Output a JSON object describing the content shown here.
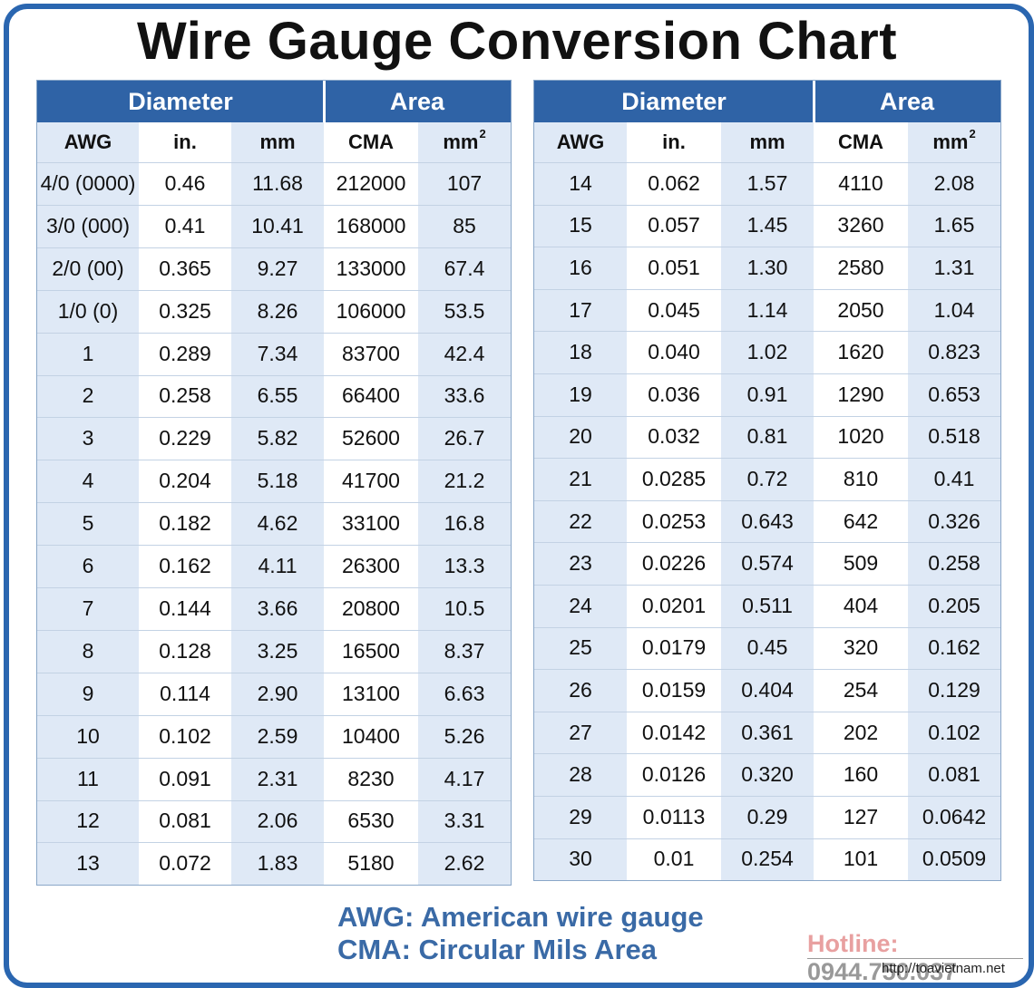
{
  "title": "Wire Gauge Conversion Chart",
  "group_headers": {
    "diameter": "Diameter",
    "area": "Area"
  },
  "columns": [
    "AWG",
    "in.",
    "mm",
    "CMA",
    "mm",
    "2"
  ],
  "left_rows": [
    [
      "4/0 (0000)",
      "0.46",
      "11.68",
      "212000",
      "107"
    ],
    [
      "3/0 (000)",
      "0.41",
      "10.41",
      "168000",
      "85"
    ],
    [
      "2/0 (00)",
      "0.365",
      "9.27",
      "133000",
      "67.4"
    ],
    [
      "1/0 (0)",
      "0.325",
      "8.26",
      "106000",
      "53.5"
    ],
    [
      "1",
      "0.289",
      "7.34",
      "83700",
      "42.4"
    ],
    [
      "2",
      "0.258",
      "6.55",
      "66400",
      "33.6"
    ],
    [
      "3",
      "0.229",
      "5.82",
      "52600",
      "26.7"
    ],
    [
      "4",
      "0.204",
      "5.18",
      "41700",
      "21.2"
    ],
    [
      "5",
      "0.182",
      "4.62",
      "33100",
      "16.8"
    ],
    [
      "6",
      "0.162",
      "4.11",
      "26300",
      "13.3"
    ],
    [
      "7",
      "0.144",
      "3.66",
      "20800",
      "10.5"
    ],
    [
      "8",
      "0.128",
      "3.25",
      "16500",
      "8.37"
    ],
    [
      "9",
      "0.114",
      "2.90",
      "13100",
      "6.63"
    ],
    [
      "10",
      "0.102",
      "2.59",
      "10400",
      "5.26"
    ],
    [
      "11",
      "0.091",
      "2.31",
      "8230",
      "4.17"
    ],
    [
      "12",
      "0.081",
      "2.06",
      "6530",
      "3.31"
    ],
    [
      "13",
      "0.072",
      "1.83",
      "5180",
      "2.62"
    ]
  ],
  "right_rows": [
    [
      "14",
      "0.062",
      "1.57",
      "4110",
      "2.08"
    ],
    [
      "15",
      "0.057",
      "1.45",
      "3260",
      "1.65"
    ],
    [
      "16",
      "0.051",
      "1.30",
      "2580",
      "1.31"
    ],
    [
      "17",
      "0.045",
      "1.14",
      "2050",
      "1.04"
    ],
    [
      "18",
      "0.040",
      "1.02",
      "1620",
      "0.823"
    ],
    [
      "19",
      "0.036",
      "0.91",
      "1290",
      "0.653"
    ],
    [
      "20",
      "0.032",
      "0.81",
      "1020",
      "0.518"
    ],
    [
      "21",
      "0.0285",
      "0.72",
      "810",
      "0.41"
    ],
    [
      "22",
      "0.0253",
      "0.643",
      "642",
      "0.326"
    ],
    [
      "23",
      "0.0226",
      "0.574",
      "509",
      "0.258"
    ],
    [
      "24",
      "0.0201",
      "0.511",
      "404",
      "0.205"
    ],
    [
      "25",
      "0.0179",
      "0.45",
      "320",
      "0.162"
    ],
    [
      "26",
      "0.0159",
      "0.404",
      "254",
      "0.129"
    ],
    [
      "27",
      "0.0142",
      "0.361",
      "202",
      "0.102"
    ],
    [
      "28",
      "0.0126",
      "0.320",
      "160",
      "0.081"
    ],
    [
      "29",
      "0.0113",
      "0.29",
      "127",
      "0.0642"
    ],
    [
      "30",
      "0.01",
      "0.254",
      "101",
      "0.0509"
    ]
  ],
  "legend": {
    "awg": "AWG: American wire gauge",
    "cma": "CMA: Circular Mils Area"
  },
  "hotline_label": "Hotline:",
  "hotline_number": "0944.750.037",
  "website": "http://toavietnam.net",
  "colors": {
    "header": "#2f63a6",
    "shade": "#dfe9f6",
    "border": "#2a66b0",
    "legend": "#3a6aa6"
  }
}
